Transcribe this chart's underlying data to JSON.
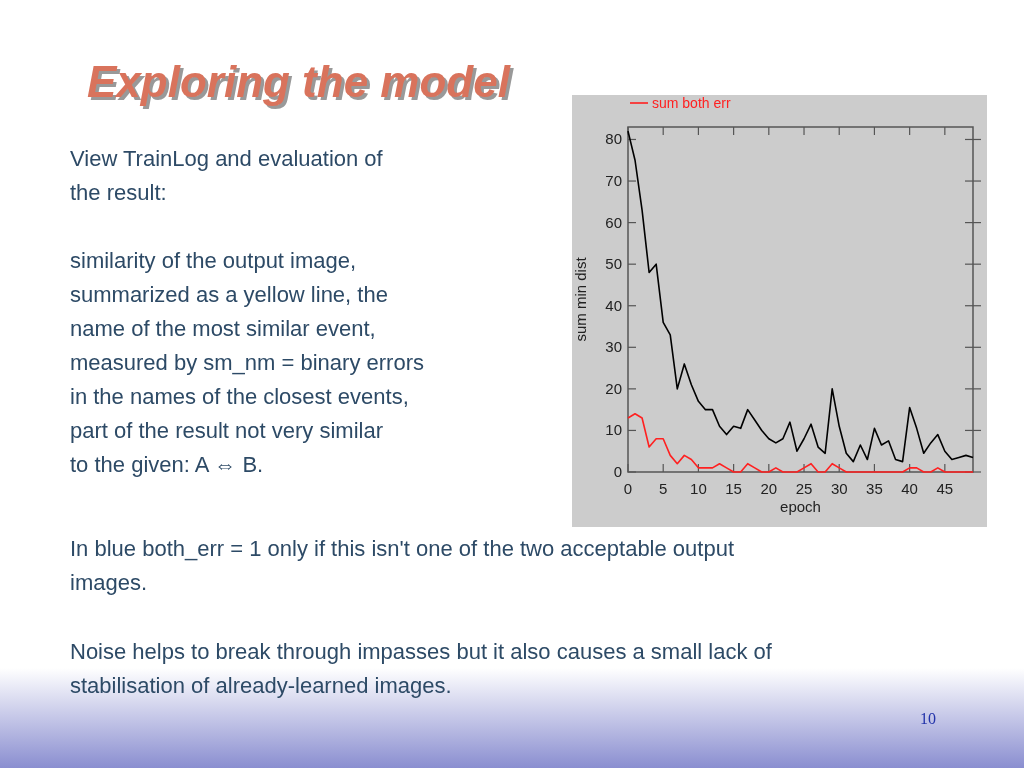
{
  "chart_data": {
    "type": "line",
    "title": "Exploring the model",
    "xlabel": "epoch",
    "ylabel": "sum min dist",
    "x": [
      0,
      1,
      2,
      3,
      4,
      5,
      6,
      7,
      8,
      9,
      10,
      11,
      12,
      13,
      14,
      15,
      16,
      17,
      18,
      19,
      20,
      21,
      22,
      23,
      24,
      25,
      26,
      27,
      28,
      29,
      30,
      31,
      32,
      33,
      34,
      35,
      36,
      37,
      38,
      39,
      40,
      41,
      42,
      43,
      44,
      45,
      46,
      47,
      48,
      49
    ],
    "series": [
      {
        "color": "#000000",
        "values": [
          82,
          75,
          63,
          48,
          50,
          36,
          33,
          20,
          26,
          21,
          17,
          15,
          15,
          11,
          9,
          11,
          10.5,
          15,
          12.5,
          10,
          8,
          7,
          8,
          12,
          5,
          8,
          11.5,
          6,
          4.5,
          20,
          11,
          4.5,
          2.5,
          6.5,
          3,
          10.5,
          6.5,
          7.5,
          3,
          2.5,
          15.5,
          10.5,
          4.5,
          7,
          9,
          5,
          3,
          3.5,
          4,
          3.5
        ]
      },
      {
        "name": "sum both err",
        "color": "#ff2020",
        "values": [
          13,
          14,
          13,
          6,
          8,
          8,
          4,
          2,
          4,
          3,
          1,
          1,
          1,
          2,
          1,
          0,
          0,
          2,
          1,
          0,
          0,
          1,
          0,
          0,
          0,
          1,
          2,
          0,
          0,
          2,
          1,
          0,
          0,
          0,
          0,
          0,
          0,
          0,
          0,
          0,
          1,
          1,
          0,
          0,
          1,
          0,
          0,
          0,
          0,
          0
        ]
      }
    ],
    "xlim": [
      0,
      49
    ],
    "xticks": [
      0,
      5,
      10,
      15,
      20,
      25,
      30,
      35,
      40,
      45
    ],
    "ylim": [
      0,
      83
    ],
    "yticks": [
      0,
      10,
      20,
      30,
      40,
      50,
      60,
      70,
      80
    ],
    "legend": "top left",
    "grid": false,
    "annotations": [
      "View TrainLog and evaluation of the result:",
      "similarity of the output image, summarized as a yellow line, the name of the most similar event, measured by sm_nm = binary errors in the names of the closest events, part of the result not very similar to the given: A ⇔ B.",
      "In blue both_err = 1 only if this isn't one of the two acceptable output images.",
      "Noise helps to break through impasses but it also causes a small lack of stabilisation of already-learned images.",
      "10"
    ]
  }
}
